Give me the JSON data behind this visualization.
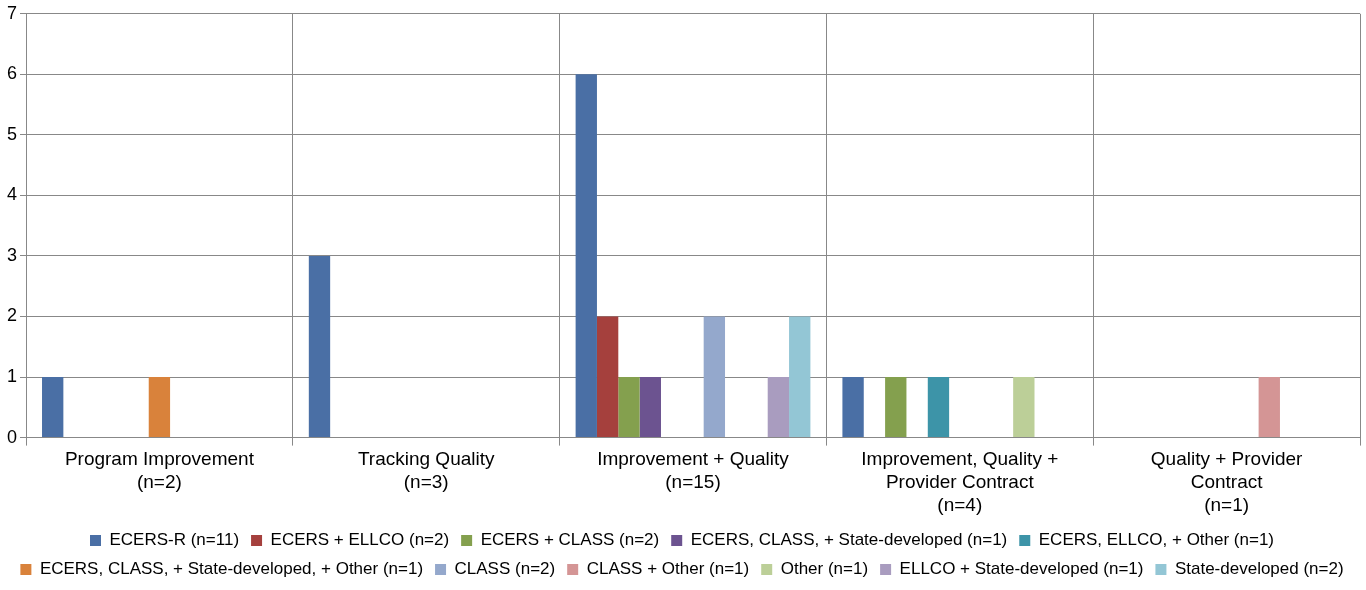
{
  "chart_data": {
    "type": "bar",
    "categories": [
      "Program Improvement (n=2)",
      "Tracking Quality (n=3)",
      "Improvement + Quality (n=15)",
      "Improvement, Quality + Provider Contract (n=4)",
      "Quality + Provider Contract (n=1)"
    ],
    "series": [
      {
        "name": "ECERS-R (n=11)",
        "color": "#4a6fa5",
        "values": [
          1,
          3,
          6,
          1,
          0
        ]
      },
      {
        "name": "ECERS + ELLCO (n=2)",
        "color": "#a5403d",
        "values": [
          0,
          0,
          2,
          0,
          0
        ]
      },
      {
        "name": "ECERS + CLASS (n=2)",
        "color": "#84a04e",
        "values": [
          0,
          0,
          1,
          1,
          0
        ]
      },
      {
        "name": "ECERS, CLASS, + State-developed (n=1)",
        "color": "#6c5390",
        "values": [
          0,
          0,
          1,
          0,
          0
        ]
      },
      {
        "name": "ECERS, ELLCO, + Other (n=1)",
        "color": "#3d94a8",
        "values": [
          0,
          0,
          0,
          1,
          0
        ]
      },
      {
        "name": "ECERS, CLASS, + State-developed, + Other (n=1)",
        "color": "#d9823b",
        "values": [
          1,
          0,
          0,
          0,
          0
        ]
      },
      {
        "name": "CLASS (n=2)",
        "color": "#94a8cc",
        "values": [
          0,
          0,
          2,
          0,
          0
        ]
      },
      {
        "name": "CLASS + Other (n=1)",
        "color": "#d49595",
        "values": [
          0,
          0,
          0,
          0,
          1
        ]
      },
      {
        "name": "Other (n=1)",
        "color": "#bccf98",
        "values": [
          0,
          0,
          0,
          1,
          0
        ]
      },
      {
        "name": "ELLCO + State-developed (n=1)",
        "color": "#a99cbf",
        "values": [
          0,
          0,
          1,
          0,
          0
        ]
      },
      {
        "name": "State-developed (n=2)",
        "color": "#93c6d5",
        "values": [
          0,
          0,
          2,
          0,
          0
        ]
      }
    ],
    "ylim": [
      0,
      7
    ],
    "yticks": [
      0,
      1,
      2,
      3,
      4,
      5,
      6,
      7
    ],
    "grid": true,
    "legend": "bottom"
  }
}
